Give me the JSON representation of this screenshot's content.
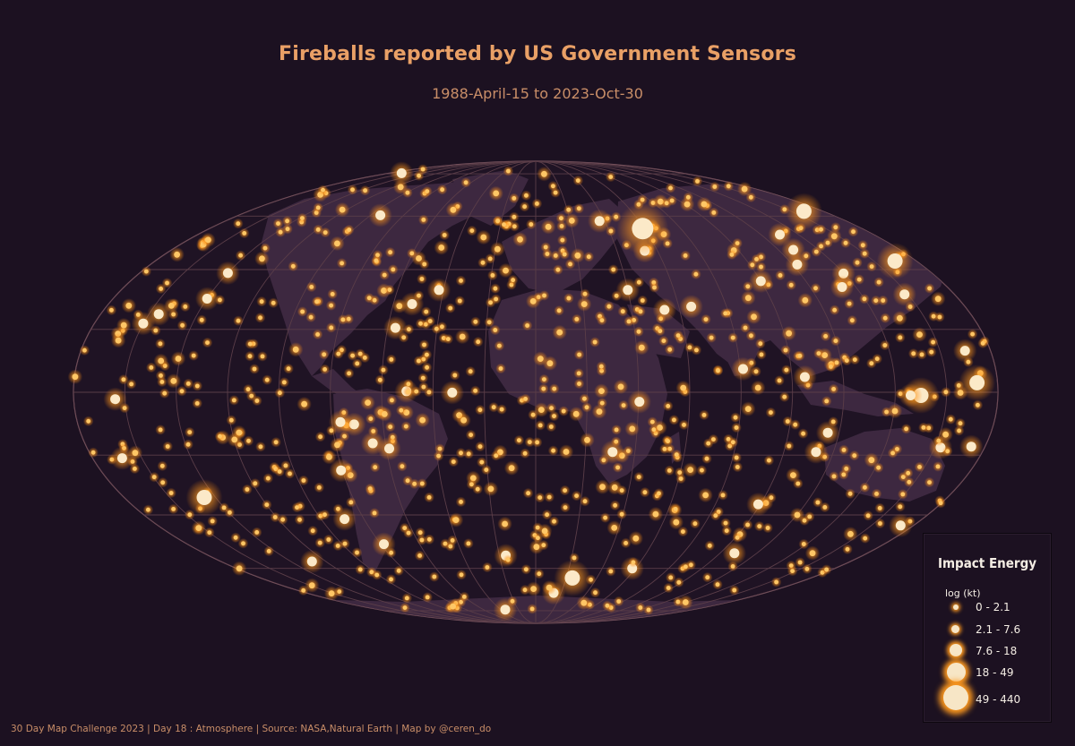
{
  "title": "Fireballs reported by US Government Sensors",
  "subtitle": "1988-April-15 to 2023-Oct-30",
  "map": {
    "projection": "mollweide",
    "graticule": true,
    "colors": {
      "background": "#1c1121",
      "land": "#3d2840",
      "graticule": "#5a3d48",
      "outline": "#7a5560",
      "glow": "#ff9a1f",
      "core": "#fbe9c8"
    }
  },
  "legend": {
    "title": "Impact Energy",
    "subtitle": "log (kt)",
    "classes": [
      {
        "label": "0 - 2.1",
        "rank": 1
      },
      {
        "label": "2.1 - 7.6",
        "rank": 2
      },
      {
        "label": "7.6 - 18",
        "rank": 3
      },
      {
        "label": "18 - 49",
        "rank": 4
      },
      {
        "label": "49 - 440",
        "rank": 5
      }
    ]
  },
  "chart_data": {
    "type": "scatter",
    "title": "Fireballs reported by US Government Sensors",
    "subtitle": "1988-April-15 to 2023-Oct-30",
    "x_name": "longitude",
    "y_name": "latitude",
    "size_name": "impact energy class (log kt)",
    "notable_points": [
      {
        "lon": 59,
        "lat": 55,
        "class": 5
      },
      {
        "lon": 168,
        "lat": 62,
        "class": 4
      },
      {
        "lon": 170,
        "lat": 43,
        "class": 4
      },
      {
        "lon": 172,
        "lat": 3,
        "class": 4
      },
      {
        "lon": 150,
        "lat": -1,
        "class": 4
      },
      {
        "lon": 146,
        "lat": -1,
        "class": 3
      },
      {
        "lon": -156,
        "lat": 25,
        "class": 3
      },
      {
        "lon": -168,
        "lat": -21,
        "class": 3
      },
      {
        "lon": -145,
        "lat": -34,
        "class": 4
      },
      {
        "lon": 24,
        "lat": -64,
        "class": 4
      },
      {
        "lon": 40,
        "lat": 33,
        "class": 3
      },
      {
        "lon": 134,
        "lat": 34,
        "class": 3
      },
      {
        "lon": 100,
        "lat": 36,
        "class": 3
      },
      {
        "lon": 31,
        "lat": -19,
        "class": 3
      },
      {
        "lon": 113,
        "lat": -19,
        "class": 3
      },
      {
        "lon": -42,
        "lat": 33,
        "class": 3
      },
      {
        "lon": 37,
        "lat": 58,
        "class": 3
      }
    ]
  },
  "footer": "30 Day Map Challenge 2023 | Day 18 : Atmosphere | Source: NASA,Natural Earth | Map by @ceren_do"
}
